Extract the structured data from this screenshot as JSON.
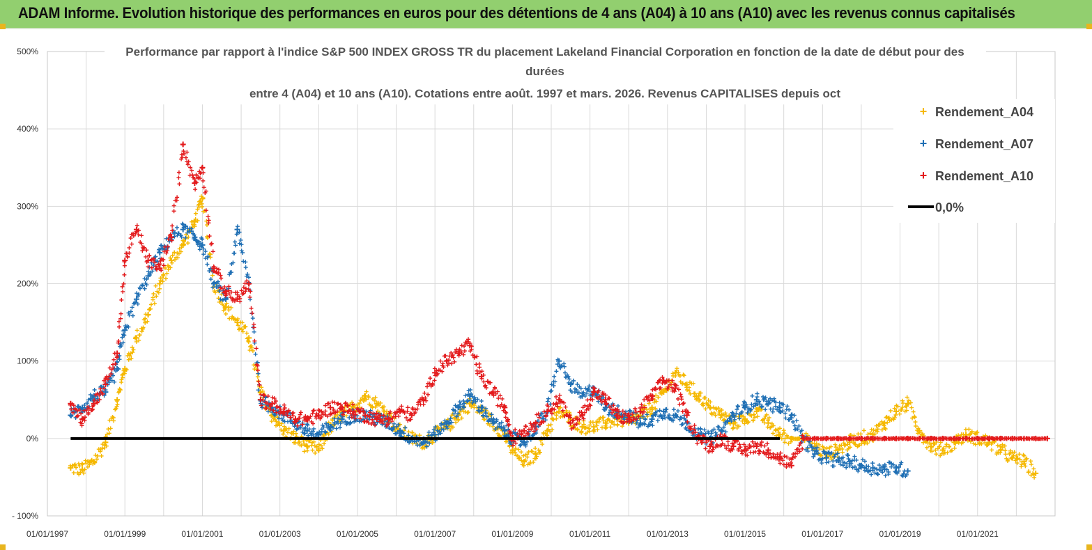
{
  "banner": {
    "title": "ADAM Informe. Evolution historique des performances en euros pour des détentions de 4 ans (A04) à 10 ans (A10) avec les revenus connus capitalisés"
  },
  "colors": {
    "banner_bg": "#92cf6f",
    "a04": "#f5b800",
    "a07": "#1f6fb4",
    "a10": "#e31a1c",
    "zero": "#000000"
  },
  "chart_data": {
    "type": "scatter",
    "title_lines": [
      "Performance par rapport à l'indice S&P 500 INDEX GROSS TR  du placement Lakeland Financial Corporation en fonction de la date de début pour des",
      "durées",
      "entre 4 (A04) et 10 ans (A10). Cotations entre août. 1997 et mars. 2026. Revenus CAPITALISES depuis oct"
    ],
    "xlabel": "",
    "ylabel": "",
    "xlim": [
      1997.0,
      2023.0
    ],
    "ylim": [
      -100,
      500
    ],
    "y_ticks": [
      -100,
      0,
      100,
      200,
      300,
      400,
      500
    ],
    "y_tick_labels": [
      "- 100%",
      "0%",
      "100%",
      "200%",
      "300%",
      "400%",
      "500%"
    ],
    "x_ticks": [
      1997,
      1999,
      2001,
      2003,
      2005,
      2007,
      2009,
      2011,
      2013,
      2015,
      2017,
      2019,
      2021
    ],
    "x_tick_labels": [
      "01/01/1997",
      "01/01/1999",
      "01/01/2001",
      "01/01/2003",
      "01/01/2005",
      "01/01/2007",
      "01/01/2009",
      "01/01/2011",
      "01/01/2013",
      "01/01/2015",
      "01/01/2017",
      "01/01/2019",
      "01/01/2021"
    ],
    "legend_position": "top-right",
    "series": [
      {
        "name": "Rendement_A04",
        "color": "#f5b800",
        "marker": "+",
        "x": [
          1997.6,
          1997.9,
          1998.2,
          1998.5,
          1998.8,
          1999.0,
          1999.3,
          1999.6,
          1999.9,
          2000.2,
          2000.5,
          2000.8,
          2001.0,
          2001.3,
          2001.6,
          2001.9,
          2002.2,
          2002.5,
          2002.8,
          2003.1,
          2003.4,
          2003.7,
          2004.0,
          2004.3,
          2004.6,
          2004.9,
          2005.2,
          2005.5,
          2005.8,
          2006.1,
          2006.4,
          2006.7,
          2007.0,
          2007.3,
          2007.6,
          2007.9,
          2008.2,
          2008.5,
          2008.8,
          2009.0,
          2009.3,
          2009.6,
          2009.9,
          2010.2,
          2010.5,
          2010.8,
          2011.1,
          2011.4,
          2011.7,
          2012.0,
          2012.3,
          2012.6,
          2012.9,
          2013.2,
          2013.5,
          2013.8,
          2014.1,
          2014.4,
          2014.7,
          2015.0,
          2015.3,
          2015.6,
          2015.9,
          2016.2,
          2016.5,
          2016.8,
          2017.1,
          2017.4,
          2017.7,
          2018.0,
          2018.3,
          2018.6,
          2018.9,
          2019.2,
          2019.5,
          2019.8,
          2020.1,
          2020.4,
          2020.7,
          2021.0,
          2021.3,
          2021.6,
          2021.9,
          2022.2,
          2022.5
        ],
        "y": [
          -38,
          -40,
          -30,
          -5,
          50,
          90,
          130,
          160,
          200,
          230,
          250,
          280,
          310,
          200,
          170,
          150,
          130,
          60,
          30,
          10,
          0,
          -10,
          -15,
          15,
          30,
          40,
          55,
          45,
          30,
          10,
          0,
          -5,
          5,
          15,
          30,
          45,
          35,
          20,
          5,
          -15,
          -30,
          -20,
          10,
          35,
          25,
          15,
          15,
          20,
          25,
          20,
          30,
          40,
          60,
          85,
          70,
          55,
          40,
          30,
          20,
          25,
          35,
          20,
          5,
          0,
          0,
          -10,
          -20,
          -15,
          -5,
          0,
          5,
          20,
          35,
          45,
          10,
          -10,
          -15,
          -5,
          5,
          0,
          -5,
          -15,
          -25,
          -30,
          -45
        ]
      },
      {
        "name": "Rendement_A07",
        "color": "#1f6fb4",
        "marker": "+",
        "x": [
          1997.6,
          1997.9,
          1998.2,
          1998.5,
          1998.8,
          1999.0,
          1999.3,
          1999.6,
          1999.9,
          2000.2,
          2000.5,
          2000.8,
          2001.0,
          2001.3,
          2001.6,
          2001.9,
          2002.2,
          2002.5,
          2002.8,
          2003.1,
          2003.4,
          2003.7,
          2004.0,
          2004.3,
          2004.6,
          2004.9,
          2005.2,
          2005.5,
          2005.8,
          2006.1,
          2006.4,
          2006.7,
          2007.0,
          2007.3,
          2007.6,
          2007.9,
          2008.2,
          2008.5,
          2008.8,
          2009.0,
          2009.3,
          2009.6,
          2009.9,
          2010.2,
          2010.5,
          2010.8,
          2011.1,
          2011.4,
          2011.7,
          2012.0,
          2012.3,
          2012.6,
          2012.9,
          2013.2,
          2013.5,
          2013.8,
          2014.1,
          2014.4,
          2014.7,
          2015.0,
          2015.3,
          2015.6,
          2015.9,
          2016.2,
          2016.5,
          2016.8,
          2017.1,
          2017.4,
          2017.7,
          2018.0,
          2018.3,
          2018.6,
          2018.9,
          2019.2
        ],
        "y": [
          30,
          40,
          55,
          60,
          90,
          140,
          180,
          210,
          240,
          260,
          270,
          260,
          250,
          200,
          180,
          270,
          200,
          50,
          40,
          30,
          20,
          10,
          5,
          15,
          25,
          30,
          30,
          25,
          20,
          10,
          0,
          -5,
          5,
          20,
          40,
          55,
          40,
          20,
          10,
          0,
          -5,
          15,
          35,
          100,
          70,
          55,
          65,
          40,
          35,
          30,
          20,
          25,
          35,
          30,
          20,
          5,
          0,
          10,
          30,
          40,
          50,
          45,
          40,
          30,
          0,
          -20,
          -25,
          -28,
          -30,
          -35,
          -38,
          -40,
          -38,
          -42
        ]
      },
      {
        "name": "Rendement_A10",
        "color": "#e31a1c",
        "marker": "+",
        "x": [
          1997.6,
          1997.9,
          1998.2,
          1998.5,
          1998.8,
          1999.0,
          1999.3,
          1999.6,
          1999.9,
          2000.2,
          2000.5,
          2000.8,
          2001.0,
          2001.3,
          2001.6,
          2001.9,
          2002.2,
          2002.5,
          2002.8,
          2003.1,
          2003.4,
          2003.7,
          2004.0,
          2004.3,
          2004.6,
          2004.9,
          2005.2,
          2005.5,
          2005.8,
          2006.1,
          2006.4,
          2006.7,
          2007.0,
          2007.3,
          2007.6,
          2007.9,
          2008.2,
          2008.5,
          2008.8,
          2009.0,
          2009.3,
          2009.6,
          2009.9,
          2010.2,
          2010.5,
          2010.8,
          2011.1,
          2011.4,
          2011.7,
          2012.0,
          2012.3,
          2012.6,
          2012.9,
          2013.2,
          2013.5,
          2013.8,
          2014.1,
          2014.4,
          2014.7,
          2015.0,
          2015.3,
          2015.6,
          2015.9,
          2016.2,
          2016.5,
          2016.8,
          2017.1,
          2017.4,
          2017.7,
          2018.0,
          2018.3,
          2018.6,
          2018.9,
          2019.2,
          2019.5,
          2019.8,
          2020.1,
          2020.4,
          2020.7,
          2021.0,
          2021.3,
          2021.6,
          2021.9,
          2022.2,
          2022.5,
          2022.8
        ],
        "y": [
          45,
          25,
          45,
          70,
          110,
          230,
          270,
          230,
          220,
          260,
          380,
          330,
          350,
          220,
          190,
          180,
          200,
          50,
          45,
          35,
          25,
          25,
          30,
          40,
          40,
          35,
          30,
          25,
          25,
          35,
          30,
          50,
          85,
          100,
          110,
          120,
          80,
          60,
          40,
          0,
          10,
          20,
          35,
          50,
          20,
          30,
          60,
          50,
          30,
          25,
          35,
          55,
          75,
          65,
          30,
          0,
          -10,
          0,
          -10,
          -15,
          -10,
          -15,
          -25,
          -35,
          0,
          0,
          0,
          0,
          0,
          0,
          0,
          0,
          0,
          0,
          0,
          0,
          0,
          0,
          0,
          0,
          0,
          0,
          0,
          0,
          0,
          0
        ]
      },
      {
        "name": "0,0%",
        "color": "#000000",
        "marker": "line",
        "x": [
          1997.6,
          2015.9
        ],
        "y": [
          0,
          0
        ]
      }
    ]
  }
}
